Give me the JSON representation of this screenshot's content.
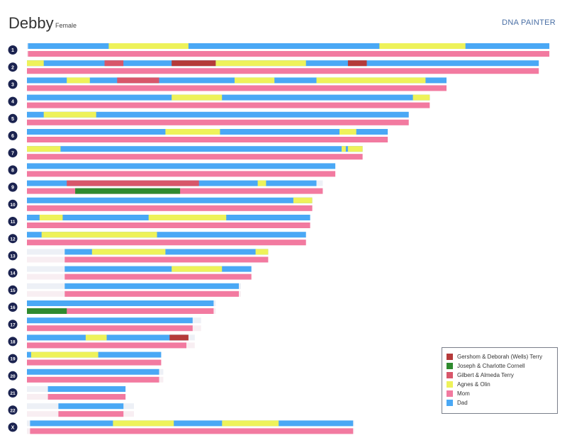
{
  "profile": {
    "name": "Debby",
    "sex": "Female",
    "brand": "DNA PAINTER"
  },
  "colors": {
    "dad": "#4aa8f5",
    "mom": "#f27aa0",
    "background": "#edf0f6",
    "label_circle": "#1b2350"
  },
  "legend": [
    {
      "label": "Gershom & Deborah (Wells) Terry",
      "color": "#b53a3a"
    },
    {
      "label": "Joseph & Charlotte Cornell",
      "color": "#2f8a2f"
    },
    {
      "label": "Gilbert & Almeda Terry",
      "color": "#d8566a"
    },
    {
      "label": "Agnes & Olin",
      "color": "#eef25a"
    },
    {
      "label": "Mom",
      "color": "#f27aa0"
    },
    {
      "label": "Dad",
      "color": "#4aa8f5"
    }
  ],
  "chart_data": {
    "type": "chromosome-map",
    "scale_mb": {
      "min": 0,
      "max": 250
    },
    "chromosomes": [
      {
        "label": "1",
        "length": 249,
        "dad": {
          "base": [
            0.5,
            249
          ],
          "segments": [
            {
              "start": 39,
              "end": 77,
              "group": "Agnes & Olin"
            },
            {
              "start": 168,
              "end": 209,
              "group": "Agnes & Olin"
            }
          ]
        },
        "mom": {
          "base": [
            0.5,
            249
          ],
          "segments": []
        }
      },
      {
        "label": "2",
        "length": 244,
        "dad": {
          "base": [
            0,
            244
          ],
          "segments": [
            {
              "start": 0,
              "end": 8,
              "group": "Agnes & Olin"
            },
            {
              "start": 37,
              "end": 46,
              "group": "Gilbert & Almeda Terry"
            },
            {
              "start": 69,
              "end": 90,
              "group": "Gershom & Deborah (Wells) Terry"
            },
            {
              "start": 90,
              "end": 133,
              "group": "Agnes & Olin"
            },
            {
              "start": 153,
              "end": 162,
              "group": "Gershom & Deborah (Wells) Terry"
            }
          ]
        },
        "mom": {
          "base": [
            0,
            244
          ],
          "segments": []
        }
      },
      {
        "label": "3",
        "length": 200,
        "dad": {
          "base": [
            0,
            200
          ],
          "segments": [
            {
              "start": 19,
              "end": 30,
              "group": "Agnes & Olin"
            },
            {
              "start": 43,
              "end": 63,
              "group": "Gilbert & Almeda Terry"
            },
            {
              "start": 99,
              "end": 118,
              "group": "Agnes & Olin"
            },
            {
              "start": 138,
              "end": 190,
              "group": "Agnes & Olin"
            }
          ]
        },
        "mom": {
          "base": [
            0,
            200
          ],
          "segments": []
        }
      },
      {
        "label": "4",
        "length": 192,
        "dad": {
          "base": [
            0,
            192
          ],
          "segments": [
            {
              "start": 69,
              "end": 93,
              "group": "Agnes & Olin"
            },
            {
              "start": 184,
              "end": 192,
              "group": "Agnes & Olin"
            }
          ]
        },
        "mom": {
          "base": [
            0,
            192
          ],
          "segments": []
        }
      },
      {
        "label": "5",
        "length": 182,
        "dad": {
          "base": [
            0,
            182
          ],
          "segments": [
            {
              "start": 8,
              "end": 33,
              "group": "Agnes & Olin"
            }
          ]
        },
        "mom": {
          "base": [
            0,
            182
          ],
          "segments": []
        }
      },
      {
        "label": "6",
        "length": 172,
        "dad": {
          "base": [
            0,
            172
          ],
          "segments": [
            {
              "start": 66,
              "end": 92,
              "group": "Agnes & Olin"
            },
            {
              "start": 149,
              "end": 157,
              "group": "Agnes & Olin"
            }
          ]
        },
        "mom": {
          "base": [
            0,
            172
          ],
          "segments": []
        }
      },
      {
        "label": "7",
        "length": 160,
        "dad": {
          "base": [
            0,
            160
          ],
          "segments": [
            {
              "start": 0,
              "end": 16,
              "group": "Agnes & Olin"
            },
            {
              "start": 150,
              "end": 152,
              "group": "Agnes & Olin"
            },
            {
              "start": 153,
              "end": 160,
              "group": "Agnes & Olin"
            }
          ]
        },
        "mom": {
          "base": [
            0,
            160
          ],
          "segments": []
        }
      },
      {
        "label": "8",
        "length": 147,
        "dad": {
          "base": [
            0,
            147
          ],
          "segments": []
        },
        "mom": {
          "base": [
            0,
            147
          ],
          "segments": []
        }
      },
      {
        "label": "9",
        "length": 141,
        "dad": {
          "base": [
            0,
            138
          ],
          "segments": [
            {
              "start": 19,
              "end": 82,
              "group": "Gilbert & Almeda Terry"
            },
            {
              "start": 110,
              "end": 114,
              "group": "Agnes & Olin"
            }
          ]
        },
        "mom": {
          "base": [
            0,
            141
          ],
          "segments": [
            {
              "start": 23,
              "end": 73,
              "group": "Joseph & Charlotte Cornell"
            }
          ]
        }
      },
      {
        "label": "10",
        "length": 136,
        "dad": {
          "base": [
            0,
            136
          ],
          "segments": [
            {
              "start": 127,
              "end": 136,
              "group": "Agnes & Olin"
            }
          ]
        },
        "mom": {
          "base": [
            0,
            136
          ],
          "segments": []
        }
      },
      {
        "label": "11",
        "length": 135,
        "dad": {
          "base": [
            0,
            135
          ],
          "segments": [
            {
              "start": 6,
              "end": 17,
              "group": "Agnes & Olin"
            },
            {
              "start": 58,
              "end": 95,
              "group": "Agnes & Olin"
            }
          ]
        },
        "mom": {
          "base": [
            0,
            135
          ],
          "segments": []
        }
      },
      {
        "label": "12",
        "length": 133,
        "dad": {
          "base": [
            0,
            133
          ],
          "segments": [
            {
              "start": 7,
              "end": 62,
              "group": "Agnes & Olin"
            }
          ]
        },
        "mom": {
          "base": [
            0,
            133
          ],
          "segments": []
        }
      },
      {
        "label": "13",
        "length": 115,
        "dad": {
          "base": [
            18,
            115
          ],
          "segments": [
            {
              "start": 31,
              "end": 66,
              "group": "Agnes & Olin"
            },
            {
              "start": 109,
              "end": 115,
              "group": "Agnes & Olin"
            }
          ]
        },
        "mom": {
          "base": [
            18,
            115
          ],
          "segments": []
        }
      },
      {
        "label": "14",
        "length": 107,
        "dad": {
          "base": [
            18,
            107
          ],
          "segments": [
            {
              "start": 69,
              "end": 93,
              "group": "Agnes & Olin"
            }
          ]
        },
        "mom": {
          "base": [
            18,
            107
          ],
          "segments": []
        }
      },
      {
        "label": "15",
        "length": 102,
        "dad": {
          "base": [
            18,
            101
          ],
          "segments": []
        },
        "mom": {
          "base": [
            18,
            101
          ],
          "segments": []
        }
      },
      {
        "label": "16",
        "length": 90,
        "dad": {
          "base": [
            0,
            89
          ],
          "segments": []
        },
        "mom": {
          "base": [
            0,
            89
          ],
          "segments": [
            {
              "start": 0,
              "end": 19,
              "group": "Joseph & Charlotte Cornell"
            }
          ]
        }
      },
      {
        "label": "17",
        "length": 83,
        "dad": {
          "base": [
            0,
            79
          ],
          "segments": []
        },
        "mom": {
          "base": [
            0,
            79
          ],
          "segments": []
        }
      },
      {
        "label": "18",
        "length": 80,
        "dad": {
          "base": [
            0,
            76
          ],
          "segments": [
            {
              "start": 28,
              "end": 38,
              "group": "Agnes & Olin"
            },
            {
              "start": 68,
              "end": 77,
              "group": "Gershom & Deborah (Wells) Terry"
            }
          ]
        },
        "mom": {
          "base": [
            0,
            76
          ],
          "segments": []
        }
      },
      {
        "label": "19",
        "length": 64,
        "dad": {
          "base": [
            0,
            64
          ],
          "segments": [
            {
              "start": 2,
              "end": 34,
              "group": "Agnes & Olin"
            }
          ]
        },
        "mom": {
          "base": [
            0,
            64
          ],
          "segments": []
        }
      },
      {
        "label": "20",
        "length": 65,
        "dad": {
          "base": [
            0,
            63
          ],
          "segments": []
        },
        "mom": {
          "base": [
            0,
            63
          ],
          "segments": []
        }
      },
      {
        "label": "21",
        "length": 47,
        "dad": {
          "base": [
            10,
            47
          ],
          "segments": []
        },
        "mom": {
          "base": [
            10,
            47
          ],
          "segments": []
        }
      },
      {
        "label": "22",
        "length": 51,
        "dad": {
          "base": [
            15,
            46
          ],
          "segments": []
        },
        "mom": {
          "base": [
            15,
            46
          ],
          "segments": []
        }
      },
      {
        "label": "X",
        "length": 156,
        "dad": {
          "base": [
            1.5,
            155.5
          ],
          "segments": [
            {
              "start": 41,
              "end": 70,
              "group": "Agnes & Olin"
            },
            {
              "start": 93,
              "end": 120,
              "group": "Agnes & Olin"
            }
          ]
        },
        "mom": {
          "base": [
            1.5,
            155.5
          ],
          "segments": []
        }
      }
    ]
  }
}
